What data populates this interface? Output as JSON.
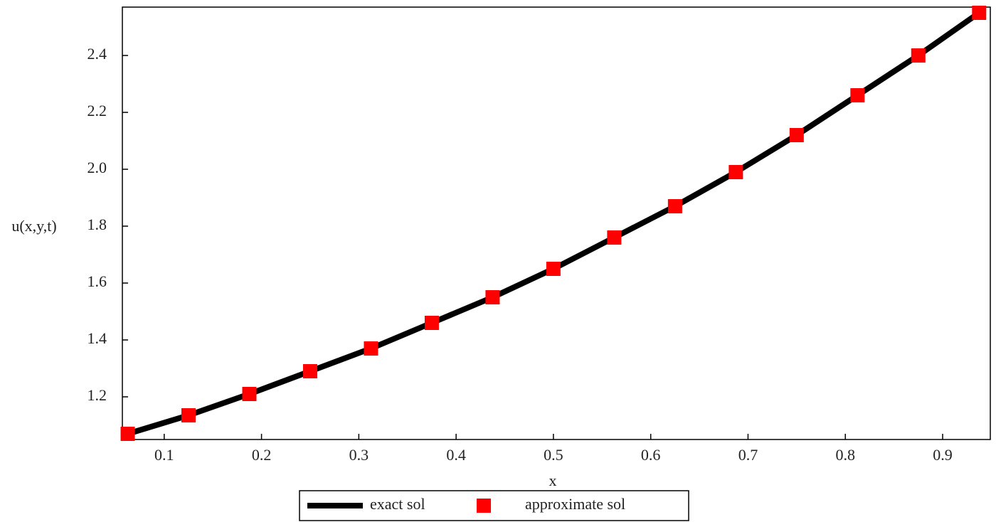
{
  "chart_data": {
    "type": "line",
    "x_label": "x",
    "y_label": "u(x,y,t)",
    "x": [
      0.0625,
      0.125,
      0.1875,
      0.25,
      0.3125,
      0.375,
      0.4375,
      0.5,
      0.5625,
      0.625,
      0.6875,
      0.75,
      0.8125,
      0.875,
      0.9375
    ],
    "series": [
      {
        "name": "exact sol",
        "color": "#000000",
        "style": "line",
        "values": [
          1.07,
          1.135,
          1.21,
          1.29,
          1.37,
          1.46,
          1.55,
          1.65,
          1.76,
          1.87,
          1.99,
          2.12,
          2.26,
          2.4,
          2.55
        ]
      },
      {
        "name": "approximate sol",
        "color": "#ff0000",
        "style": "marker",
        "values": [
          1.07,
          1.135,
          1.21,
          1.29,
          1.37,
          1.46,
          1.55,
          1.65,
          1.76,
          1.87,
          1.99,
          2.12,
          2.26,
          2.4,
          2.55
        ]
      }
    ],
    "xlim": [
      0.057,
      0.949
    ],
    "ylim": [
      1.05,
      2.57
    ],
    "xticks": [
      0.1,
      0.2,
      0.3,
      0.4,
      0.5,
      0.6,
      0.7,
      0.8,
      0.9
    ],
    "yticks": [
      1.2,
      1.4,
      1.6,
      1.8,
      {
        "value": 2,
        "label": "2.0"
      },
      2.2,
      2.4
    ],
    "legend": "bottom"
  }
}
